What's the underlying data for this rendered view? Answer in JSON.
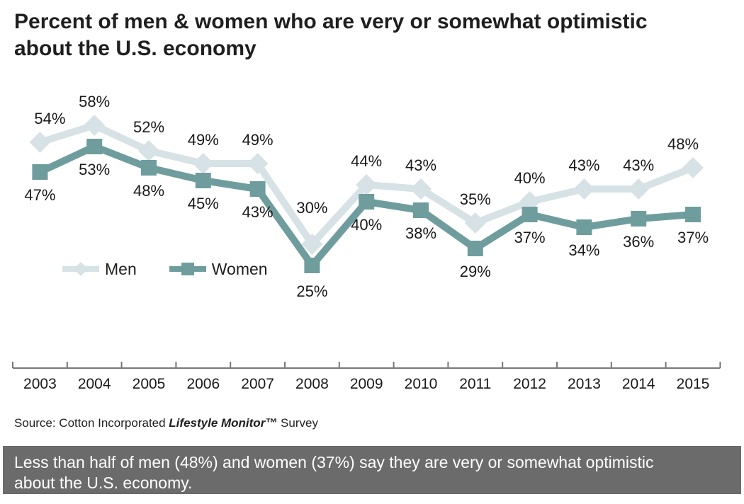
{
  "title": {
    "lines": [
      "Percent of men & women who are very or somewhat optimistic",
      "about the U.S. economy"
    ]
  },
  "legend": {
    "men_label": "Men",
    "women_label": "Women"
  },
  "chart_data": {
    "type": "line",
    "x": [
      "2003",
      "2004",
      "2005",
      "2006",
      "2007",
      "2008",
      "2009",
      "2010",
      "2011",
      "2012",
      "2013",
      "2014",
      "2015"
    ],
    "series": [
      {
        "name": "Men",
        "marker": "diamond",
        "color": "#d7e2e6",
        "values": [
          54,
          58,
          52,
          49,
          49,
          30,
          44,
          43,
          35,
          40,
          43,
          43,
          48
        ]
      },
      {
        "name": "Women",
        "marker": "square",
        "color": "#6f9d9d",
        "values": [
          47,
          53,
          48,
          45,
          43,
          25,
          40,
          38,
          29,
          37,
          34,
          36,
          37
        ]
      }
    ],
    "value_suffix": "%",
    "title": "Percent of men & women who are very or somewhat optimistic about the U.S. economy",
    "xlabel": "",
    "ylabel": "",
    "ylim": [
      0,
      70
    ],
    "grid": false,
    "legend_position": "inside-left",
    "data_labels": true,
    "axis_color": "#777777",
    "label_color": "#1a1a1a"
  },
  "source": {
    "prefix": "Source: Cotton Incorporated ",
    "brand": "Lifestyle Monitor™",
    "suffix": " Survey"
  },
  "caption": {
    "lines": [
      "Less than half of men (48%) and women (37%) say they are very or somewhat optimistic",
      "about the U.S. economy."
    ]
  }
}
